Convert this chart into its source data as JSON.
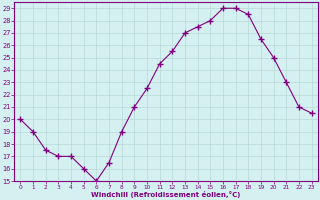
{
  "x": [
    0,
    1,
    2,
    3,
    4,
    5,
    6,
    7,
    8,
    9,
    10,
    11,
    12,
    13,
    14,
    15,
    16,
    17,
    18,
    19,
    20,
    21,
    22,
    23
  ],
  "y": [
    20,
    19,
    17.5,
    17,
    17,
    16,
    15,
    16.5,
    19,
    21,
    22.5,
    24.5,
    25.5,
    27,
    27.5,
    28,
    29,
    29,
    28.5,
    26.5,
    25,
    23,
    21,
    20.5
  ],
  "line_color": "#800080",
  "marker": "+",
  "marker_size": 4,
  "bg_color": "#d4f0f0",
  "grid_color": "#b8d8d8",
  "xlabel": "Windchill (Refroidissement éolien,°C)",
  "ylim": [
    15,
    29.5
  ],
  "xlim": [
    -0.5,
    23.5
  ],
  "yticks": [
    15,
    16,
    17,
    18,
    19,
    20,
    21,
    22,
    23,
    24,
    25,
    26,
    27,
    28,
    29
  ],
  "xtick_labels": [
    "0",
    "1",
    "2",
    "3",
    "4",
    "5",
    "6",
    "7",
    "8",
    "9",
    "10",
    "11",
    "12",
    "13",
    "14",
    "15",
    "16",
    "17",
    "18",
    "19",
    "20",
    "21",
    "22",
    "23"
  ],
  "xticks": [
    0,
    1,
    2,
    3,
    4,
    5,
    6,
    7,
    8,
    9,
    10,
    11,
    12,
    13,
    14,
    15,
    16,
    17,
    18,
    19,
    20,
    21,
    22,
    23
  ],
  "tick_color": "#800080",
  "label_color": "#800080",
  "spine_color": "#800080",
  "axis_bg": "#d4f0f0"
}
